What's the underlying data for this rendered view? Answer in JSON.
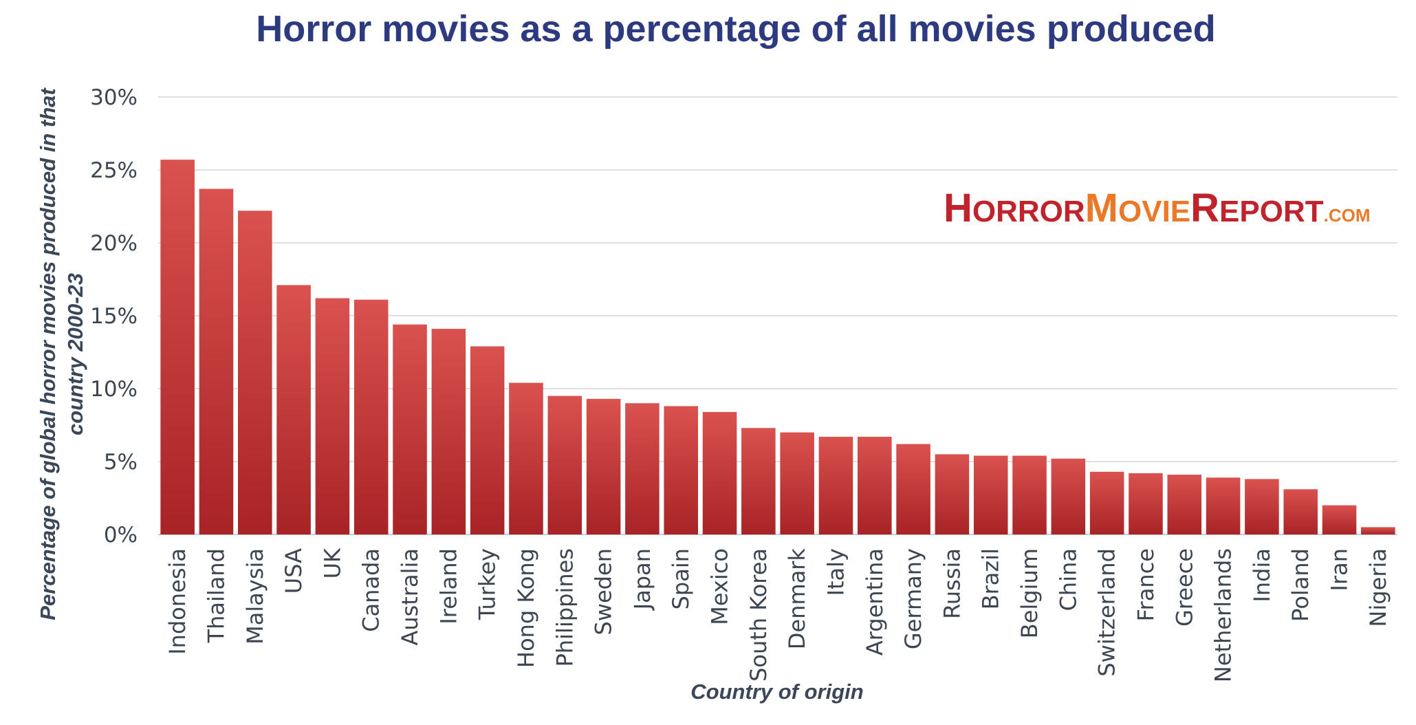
{
  "chart_data": {
    "type": "bar",
    "title": "Horror movies as a percentage of all movies produced",
    "xlabel": "Country of origin",
    "ylabel_lines": [
      "Percentage of global horror movies produced in that",
      "country 2000-23"
    ],
    "ylim": [
      0,
      30
    ],
    "yticks": [
      0,
      5,
      10,
      15,
      20,
      25,
      30
    ],
    "ytick_suffix": "%",
    "grid": true,
    "bar_colors": {
      "top": "#d9524f",
      "bottom": "#a82326"
    },
    "categories": [
      "Indonesia",
      "Thailand",
      "Malaysia",
      "USA",
      "UK",
      "Canada",
      "Australia",
      "Ireland",
      "Turkey",
      "Hong Kong",
      "Philippines",
      "Sweden",
      "Japan",
      "Spain",
      "Mexico",
      "South Korea",
      "Denmark",
      "Italy",
      "Argentina",
      "Germany",
      "Russia",
      "Brazil",
      "Belgium",
      "China",
      "Switzerland",
      "France",
      "Greece",
      "Netherlands",
      "India",
      "Poland",
      "Iran",
      "Nigeria"
    ],
    "values": [
      25.7,
      23.7,
      22.2,
      17.1,
      16.2,
      16.1,
      14.4,
      14.1,
      12.9,
      10.4,
      9.5,
      9.3,
      9.0,
      8.8,
      8.4,
      7.3,
      7.0,
      6.7,
      6.7,
      6.2,
      5.5,
      5.4,
      5.4,
      5.2,
      4.3,
      4.2,
      4.1,
      3.9,
      3.8,
      3.1,
      2.0,
      0.5
    ]
  },
  "logo": {
    "parts": [
      {
        "big": "H",
        "small": "ORROR",
        "color": "#c0232b"
      },
      {
        "big": "M",
        "small": "OVIE",
        "color": "#ea7a2a"
      },
      {
        "big": "R",
        "small": "EPORT",
        "color": "#c0232b"
      }
    ],
    "suffix": ".COM",
    "suffix_color": "#ea7a2a"
  }
}
